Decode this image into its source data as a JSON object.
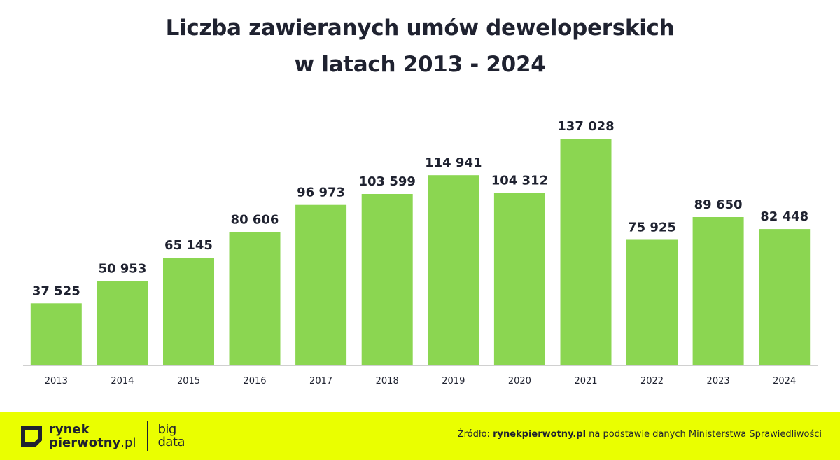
{
  "title": {
    "line1": "Liczba zawieranych umów deweloperskich",
    "line2": "w latach 2013 - 2024"
  },
  "colors": {
    "bar": "#8bd651",
    "axis": "#d0d0d0",
    "text": "#1f2230",
    "footer_bg": "#eaff00"
  },
  "chart_data": {
    "type": "bar",
    "categories": [
      "2013",
      "2014",
      "2015",
      "2016",
      "2017",
      "2018",
      "2019",
      "2020",
      "2021",
      "2022",
      "2023",
      "2024"
    ],
    "values": [
      37525,
      50953,
      65145,
      80606,
      96973,
      103599,
      114941,
      104312,
      137028,
      75925,
      89650,
      82448
    ],
    "value_labels": [
      "37 525",
      "50 953",
      "65 145",
      "80 606",
      "96 973",
      "103 599",
      "114 941",
      "104 312",
      "137 028",
      "75 925",
      "89 650",
      "82 448"
    ],
    "title": "Liczba zawieranych umów deweloperskich w latach 2013 - 2024",
    "xlabel": "",
    "ylabel": "",
    "ylim": [
      0,
      137028
    ],
    "grid": false,
    "legend": "none"
  },
  "footer": {
    "logo": {
      "line1": "rynek",
      "line2_main": "pierwotny",
      "line2_suffix": ".pl",
      "sub_line1": "big",
      "sub_line2": "data",
      "icon": "square-bracket-logo-icon"
    },
    "source": {
      "prefix": "Źródło: ",
      "site": "rynekpierwotny.pl",
      "suffix": " na podstawie danych Ministerstwa Sprawiedliwości"
    }
  }
}
